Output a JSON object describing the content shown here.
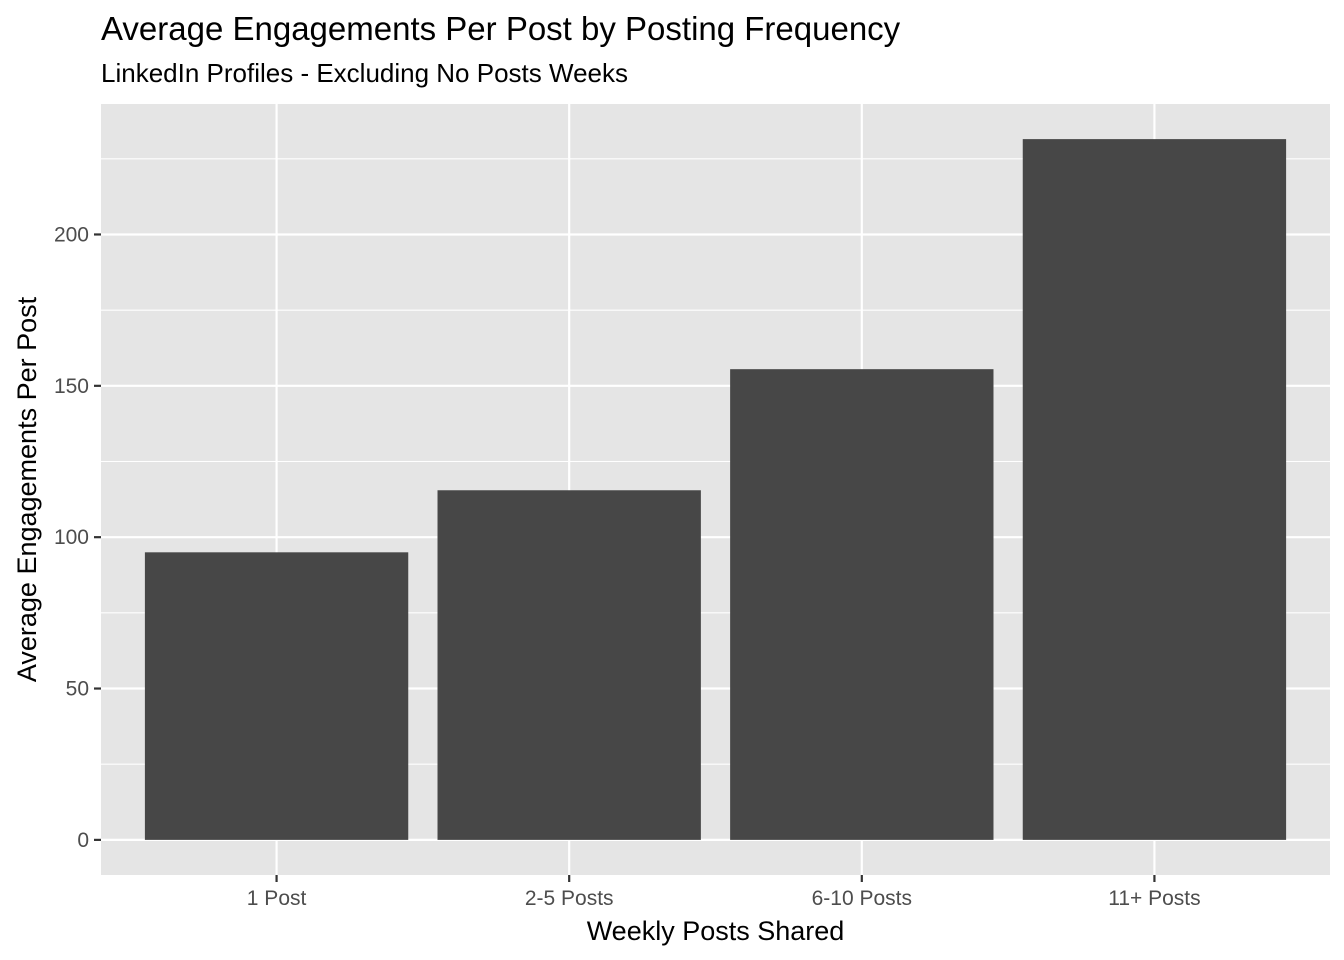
{
  "chart_data": {
    "type": "bar",
    "title": "Average Engagements Per Post by Posting Frequency",
    "subtitle": "LinkedIn Profiles - Excluding No Posts Weeks",
    "xlabel": "Weekly Posts Shared",
    "ylabel": "Average Engagements Per Post",
    "categories": [
      "1 Post",
      "2-5 Posts",
      "6-10 Posts",
      "11+ Posts"
    ],
    "values": [
      95,
      115.5,
      155.5,
      231.5
    ],
    "ylim": [
      -11.6,
      243.1
    ],
    "yticks": [
      0,
      50,
      100,
      150,
      200
    ],
    "ytick_labels": [
      "0",
      "50",
      "100",
      "150",
      "200"
    ],
    "grid": true,
    "legend": "none",
    "colors": {
      "bar": "#474747",
      "panel": "#e5e5e5",
      "grid": "#ffffff",
      "axis_text": "#4d4d4d",
      "tick": "#333333"
    }
  }
}
